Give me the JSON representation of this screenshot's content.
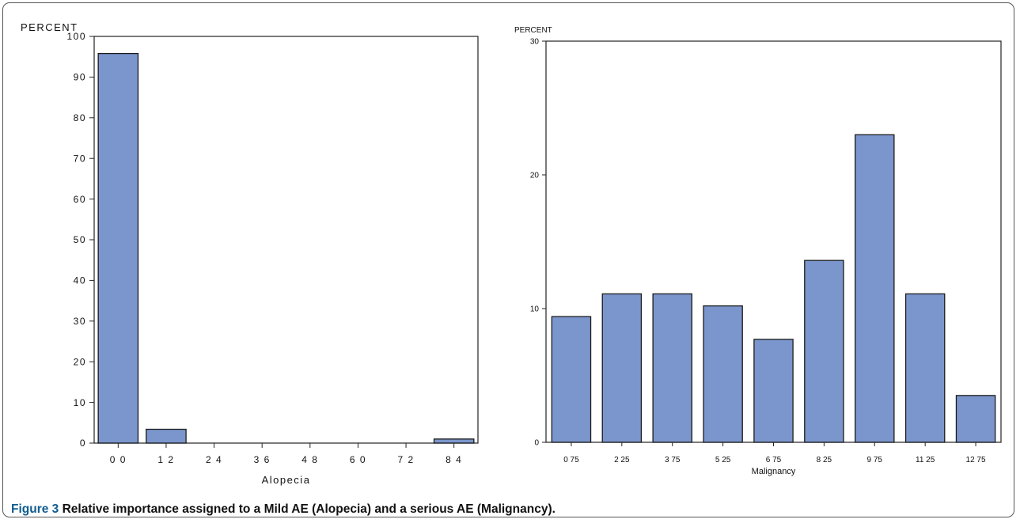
{
  "caption": {
    "label": "Figure 3",
    "text": "Relative importance assigned to a Mild AE (Alopecia) and a serious AE (Malignancy)."
  },
  "colors": {
    "bar_fill": "#7b96cc",
    "bar_stroke": "#1a1a1a",
    "axis": "#222222"
  },
  "chart_data": [
    {
      "type": "bar",
      "ylabel": "PERCENT",
      "xlabel": "Alopecia",
      "categories": [
        "0 0",
        "1 2",
        "2 4",
        "3 6",
        "4 8",
        "6 0",
        "7 2",
        "8 4"
      ],
      "values": [
        95.8,
        3.4,
        0,
        0,
        0,
        0,
        0,
        1.0
      ],
      "ylim": [
        0,
        100
      ],
      "yticks": [
        0,
        10,
        20,
        30,
        40,
        50,
        60,
        70,
        80,
        90,
        100
      ],
      "grid": false
    },
    {
      "type": "bar",
      "ylabel": "PERCENT",
      "xlabel": "Malignancy",
      "categories": [
        "0 75",
        "2 25",
        "3 75",
        "5 25",
        "6 75",
        "8 25",
        "9 75",
        "11 25",
        "12 75"
      ],
      "values": [
        9.4,
        11.1,
        11.1,
        10.2,
        7.7,
        13.6,
        23.0,
        11.1,
        3.5
      ],
      "ylim": [
        0,
        30
      ],
      "yticks": [
        0,
        10,
        20,
        30
      ],
      "grid": false
    }
  ]
}
